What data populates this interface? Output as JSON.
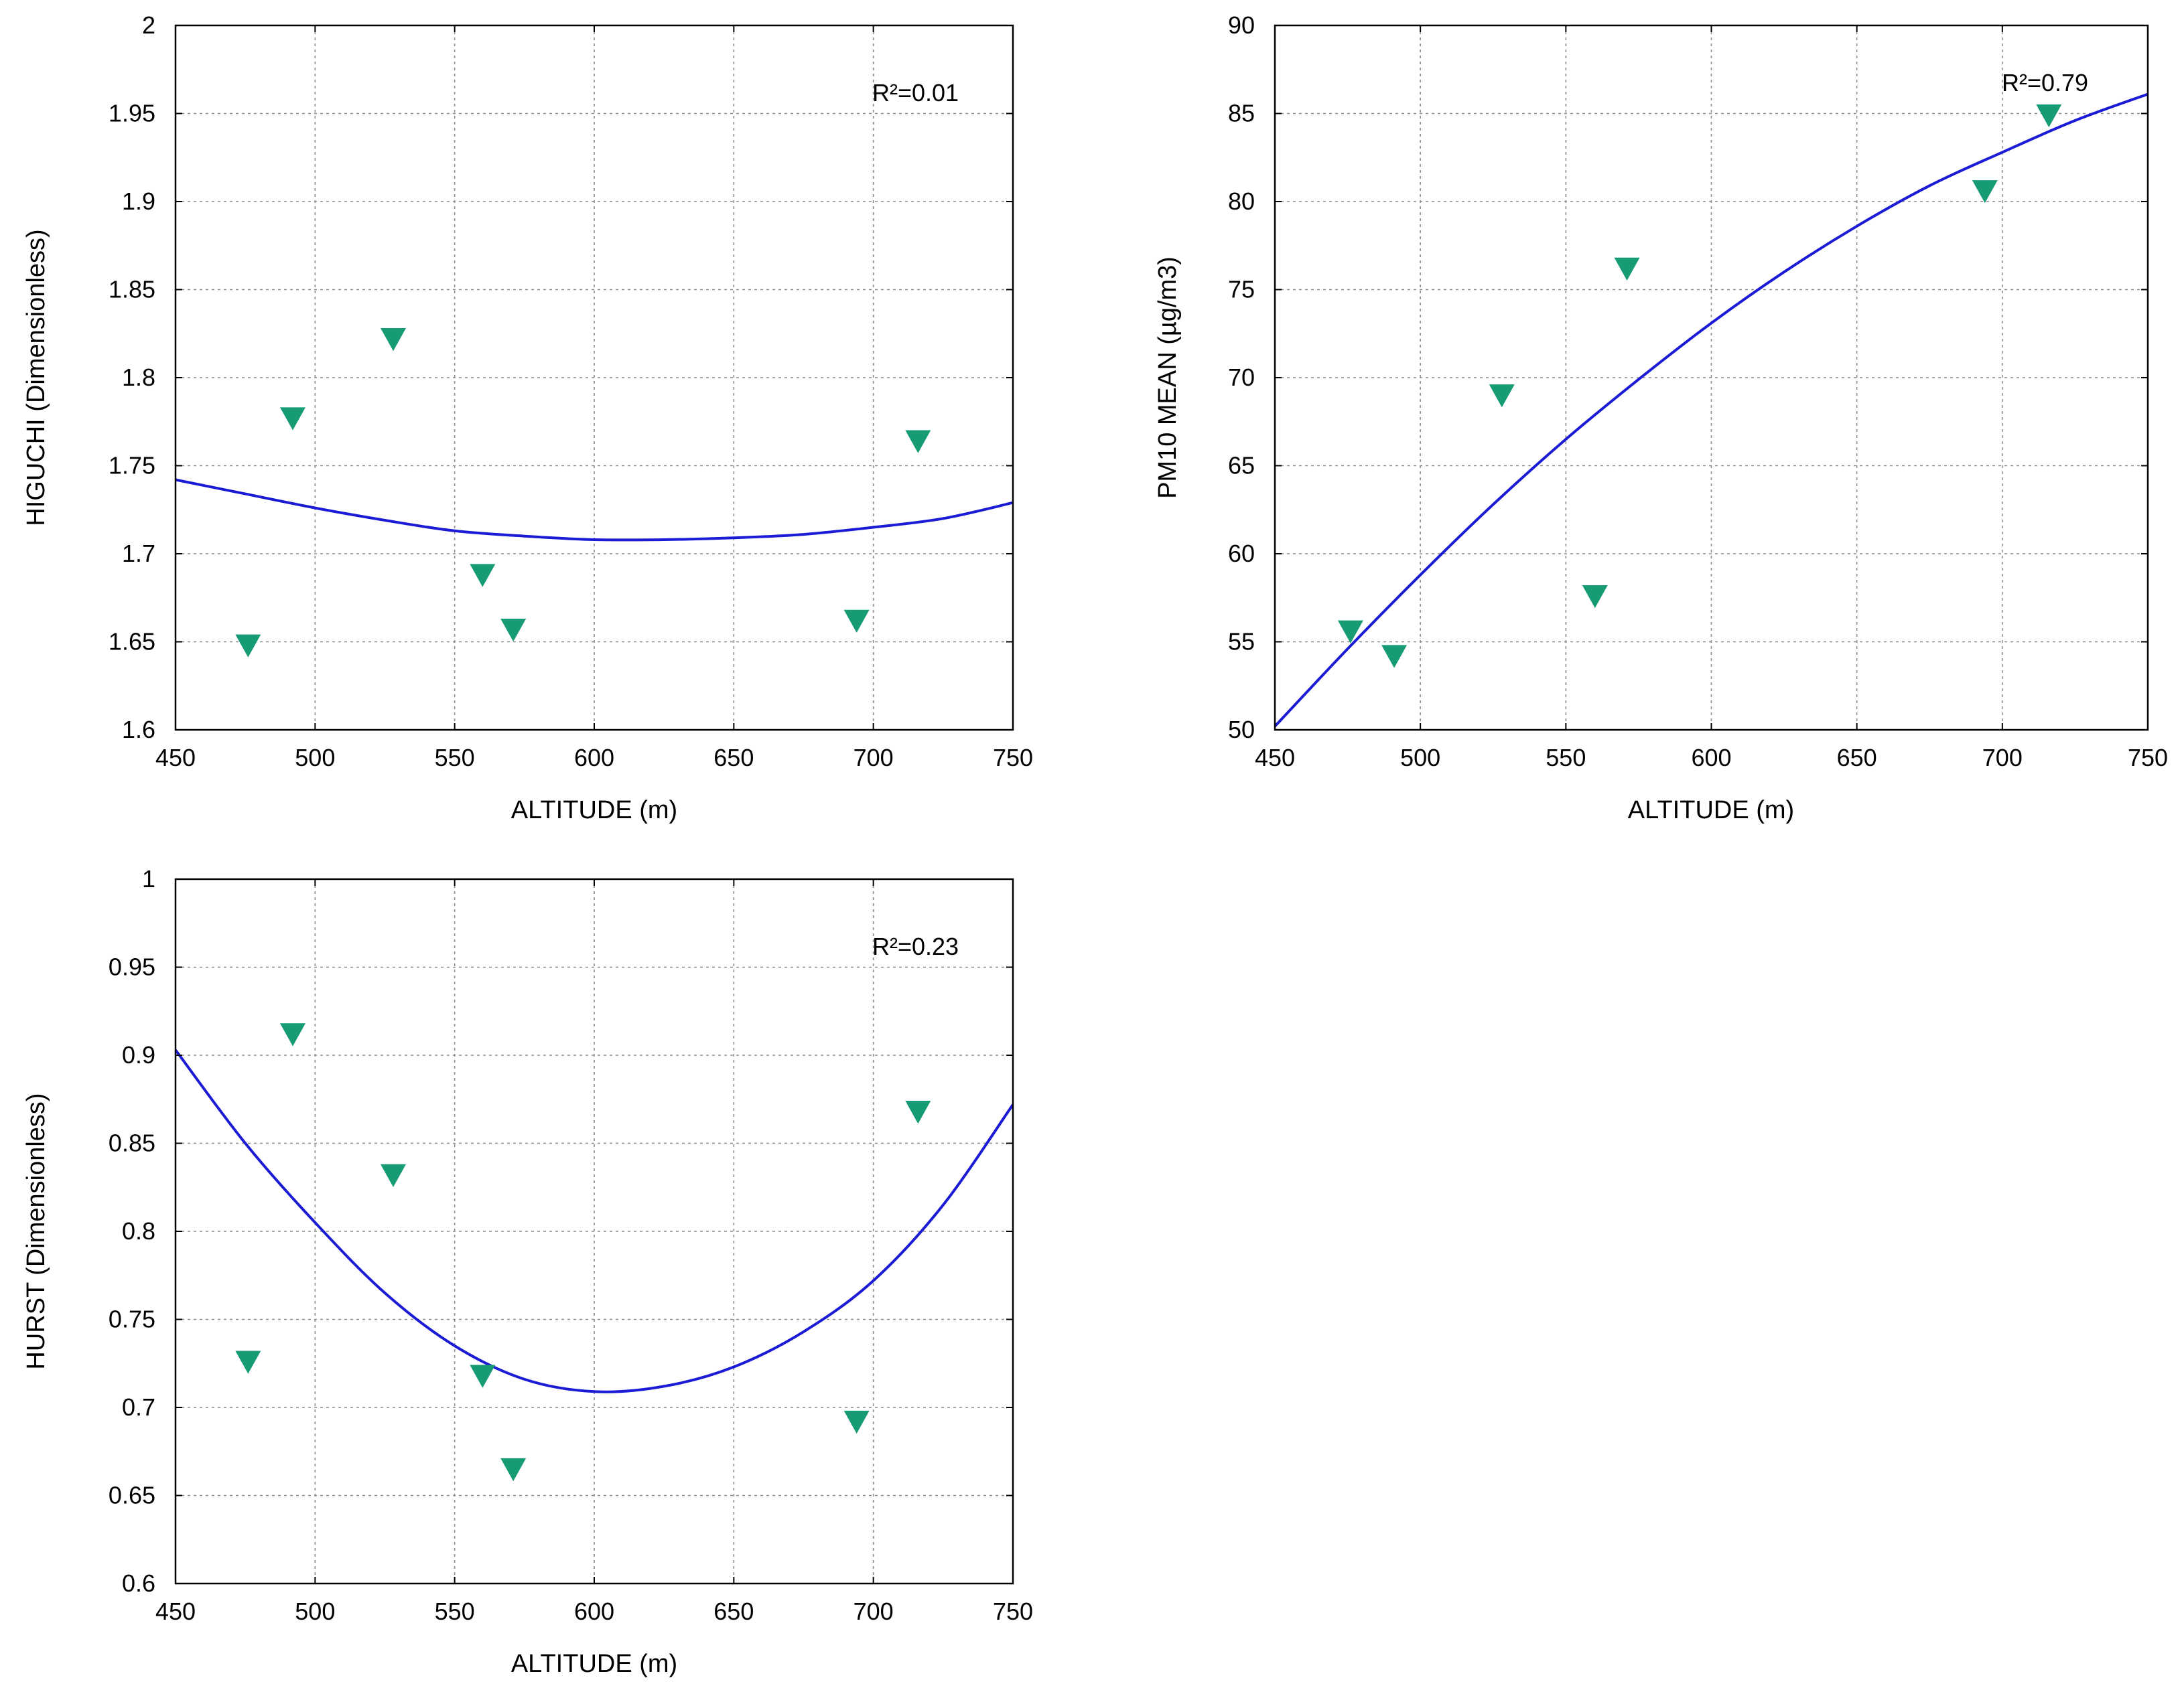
{
  "chart_data": [
    {
      "id": "higuchi",
      "type": "scatter",
      "title": "",
      "xlabel": "ALTITUDE (m)",
      "ylabel": "HIGUCHI (Dimensionless)",
      "xlim": [
        450,
        750
      ],
      "ylim": [
        1.6,
        2.0
      ],
      "xticks": [
        "450",
        "500",
        "550",
        "600",
        "650",
        "700",
        "750"
      ],
      "yticks": [
        "1.6",
        "1.65",
        "1.7",
        "1.75",
        "1.8",
        "1.85",
        "1.9",
        "1.95",
        "2"
      ],
      "grid": true,
      "annotation": "R²=0.01",
      "points": {
        "x": [
          476,
          492,
          528,
          560,
          571,
          694,
          716
        ],
        "y": [
          1.648,
          1.777,
          1.822,
          1.688,
          1.657,
          1.662,
          1.764
        ]
      },
      "fit": {
        "x": [
          450,
          475,
          500,
          525,
          550,
          575,
          600,
          625,
          650,
          675,
          700,
          725,
          750
        ],
        "y": [
          1.742,
          1.734,
          1.726,
          1.719,
          1.713,
          1.71,
          1.708,
          1.708,
          1.709,
          1.711,
          1.715,
          1.72,
          1.729
        ]
      }
    },
    {
      "id": "pm10",
      "type": "scatter",
      "title": "",
      "xlabel": "ALTITUDE (m)",
      "ylabel": "PM10 MEAN (µg/m3)",
      "xlim": [
        450,
        750
      ],
      "ylim": [
        50,
        90
      ],
      "xticks": [
        "450",
        "500",
        "550",
        "600",
        "650",
        "700",
        "750"
      ],
      "yticks": [
        "50",
        "55",
        "60",
        "65",
        "70",
        "75",
        "80",
        "85",
        "90"
      ],
      "grid": true,
      "annotation": "R²=0.79",
      "points": {
        "x": [
          476,
          491,
          528,
          560,
          571,
          694,
          716
        ],
        "y": [
          55.6,
          54.2,
          69.0,
          57.6,
          76.2,
          80.6,
          84.9
        ]
      },
      "fit": {
        "x": [
          450,
          475,
          500,
          525,
          550,
          575,
          600,
          625,
          650,
          675,
          700,
          725,
          750
        ],
        "y": [
          50.2,
          54.6,
          58.8,
          62.8,
          66.5,
          69.9,
          73.1,
          76.0,
          78.6,
          80.9,
          82.8,
          84.6,
          86.1
        ]
      }
    },
    {
      "id": "hurst",
      "type": "scatter",
      "title": "",
      "xlabel": "ALTITUDE (m)",
      "ylabel": "HURST (Dimensionless)",
      "xlim": [
        450,
        750
      ],
      "ylim": [
        0.6,
        1.0
      ],
      "xticks": [
        "450",
        "500",
        "550",
        "600",
        "650",
        "700",
        "750"
      ],
      "yticks": [
        "0.6",
        "0.65",
        "0.7",
        "0.75",
        "0.8",
        "0.85",
        "0.9",
        "0.95",
        "1"
      ],
      "grid": true,
      "annotation": "R²=0.23",
      "points": {
        "x": [
          476,
          492,
          528,
          560,
          571,
          694,
          716
        ],
        "y": [
          0.726,
          0.912,
          0.832,
          0.718,
          0.665,
          0.692,
          0.868
        ]
      },
      "fit": {
        "x": [
          450,
          475,
          500,
          525,
          550,
          575,
          600,
          625,
          650,
          675,
          700,
          725,
          750
        ],
        "y": [
          0.903,
          0.85,
          0.805,
          0.765,
          0.735,
          0.716,
          0.709,
          0.712,
          0.723,
          0.743,
          0.772,
          0.815,
          0.872
        ]
      }
    }
  ],
  "style": {
    "marker_color": "#169b74",
    "line_color": "#1b1bd6",
    "grid_color": "#8c8c8c"
  }
}
